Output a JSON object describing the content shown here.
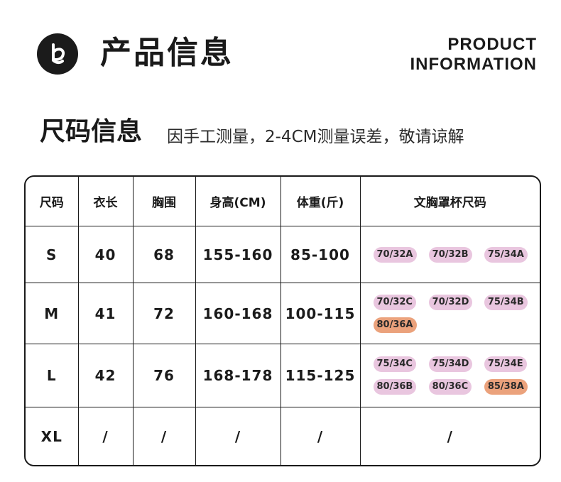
{
  "header": {
    "title": "产品信息",
    "en_title_line1": "PRODUCT",
    "en_title_line2": "INFORMATION",
    "logo_icon": "brand-logo-icon"
  },
  "size_section": {
    "title": "尺码信息",
    "note": "因手工测量，2-4CM测量误差，敬请谅解"
  },
  "table": {
    "headers": [
      "尺码",
      "衣长",
      "胸围",
      "身高(CM)",
      "体重(斤)",
      "文胸罩杯尺码"
    ],
    "rows": [
      {
        "size": "S",
        "length": "40",
        "bust": "68",
        "height": "155-160",
        "weight": "85-100",
        "cups": [
          "70/32A",
          "70/32B",
          "75/34A"
        ]
      },
      {
        "size": "M",
        "length": "41",
        "bust": "72",
        "height": "160-168",
        "weight": "100-115",
        "cups": [
          "70/32C",
          "70/32D",
          "75/34B",
          "80/36A"
        ]
      },
      {
        "size": "L",
        "length": "42",
        "bust": "76",
        "height": "168-178",
        "weight": "115-125",
        "cups": [
          "75/34C",
          "75/34D",
          "75/34E",
          "80/36B",
          "80/36C",
          "85/38A"
        ]
      },
      {
        "size": "XL",
        "length": "/",
        "bust": "/",
        "height": "/",
        "weight": "/",
        "cups_text": "/"
      }
    ]
  },
  "colors": {
    "chip_pink": "#e9c6df",
    "chip_orange": "#eba27c",
    "border": "#1a1a1a"
  }
}
